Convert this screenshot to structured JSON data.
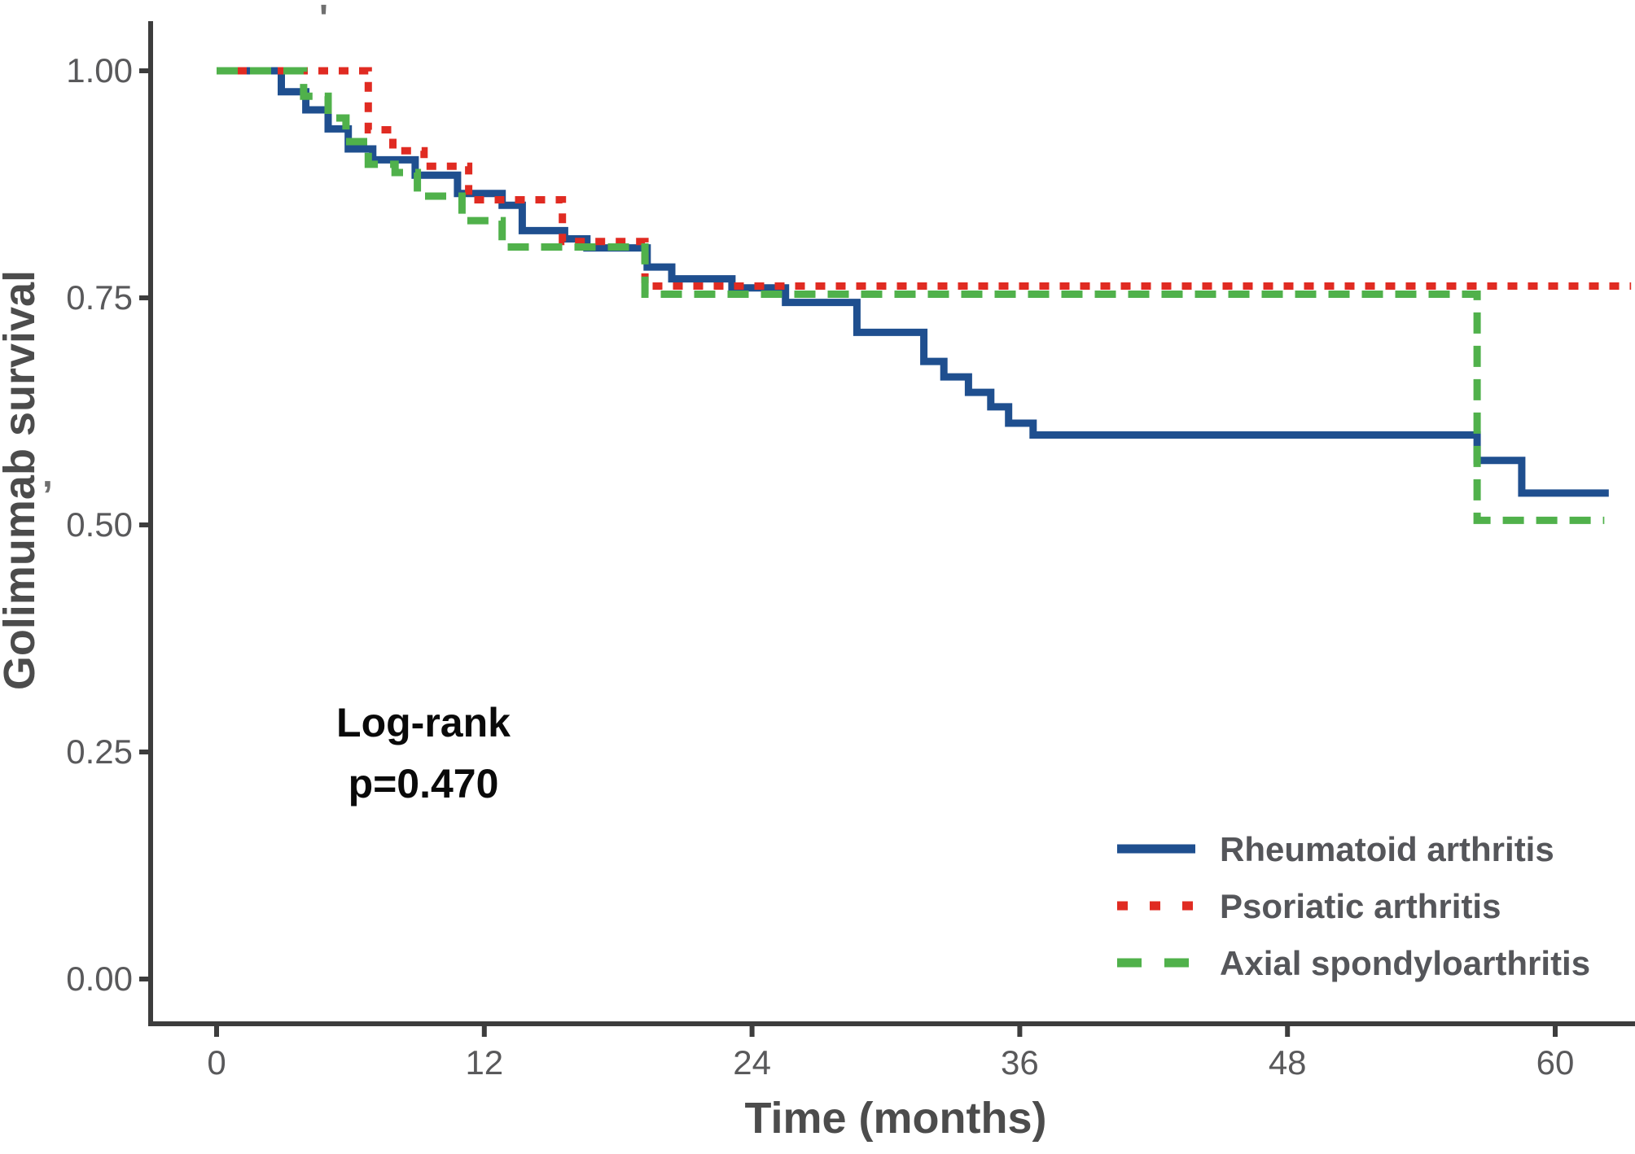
{
  "page": {
    "background": "#ffffff"
  },
  "annotation": {
    "line1": "Log-rank",
    "line2": "p=0.470"
  },
  "artifacts": {
    "top_mark": "'",
    "left_mark": ","
  },
  "chart_data": {
    "type": "line",
    "subtype": "kaplan_meier_step_curves",
    "title": "",
    "xlabel": "Time (months)",
    "ylabel": "Golimumab survival",
    "x_ticks": [
      0,
      12,
      24,
      36,
      48,
      60
    ],
    "y_ticks": [
      {
        "value": 1.0,
        "label": "1.00"
      },
      {
        "value": 0.75,
        "label": "0.75"
      },
      {
        "value": 0.5,
        "label": "0.50"
      },
      {
        "value": 0.25,
        "label": "0.25"
      },
      {
        "value": 0.0,
        "label": "0.00"
      }
    ],
    "xlim": [
      -3,
      64
    ],
    "ylim": [
      0,
      1.02
    ],
    "grid": false,
    "legend_position": "inside-bottom-right",
    "annotation": "Log-rank p=0.470",
    "series": [
      {
        "name": "Rheumatoid arthritis",
        "color": "#1f4f8f",
        "line_style": "solid",
        "end_month": 62.4,
        "points": [
          [
            0,
            1.0
          ],
          [
            2.9,
            0.977
          ],
          [
            4.0,
            0.957
          ],
          [
            5.0,
            0.936
          ],
          [
            5.9,
            0.914
          ],
          [
            7.0,
            0.902
          ],
          [
            8.9,
            0.885
          ],
          [
            10.8,
            0.865
          ],
          [
            12.8,
            0.852
          ],
          [
            13.7,
            0.824
          ],
          [
            15.6,
            0.815
          ],
          [
            16.6,
            0.805
          ],
          [
            19.3,
            0.784
          ],
          [
            20.4,
            0.771
          ],
          [
            23.1,
            0.761
          ],
          [
            25.5,
            0.745
          ],
          [
            28.7,
            0.712
          ],
          [
            31.7,
            0.68
          ],
          [
            32.6,
            0.663
          ],
          [
            33.7,
            0.646
          ],
          [
            34.7,
            0.63
          ],
          [
            35.5,
            0.612
          ],
          [
            36.6,
            0.599
          ],
          [
            56.5,
            0.571
          ],
          [
            58.5,
            0.535
          ]
        ]
      },
      {
        "name": "Psoriatic arthritis",
        "color": "#e02b22",
        "line_style": "dotted",
        "end_month": 63.4,
        "points": [
          [
            0,
            1.0
          ],
          [
            6.8,
            0.935
          ],
          [
            7.9,
            0.912
          ],
          [
            9.3,
            0.895
          ],
          [
            11.3,
            0.858
          ],
          [
            15.5,
            0.812
          ],
          [
            19.2,
            0.763
          ]
        ]
      },
      {
        "name": "Axial spondyloarthritis",
        "color": "#50b14b",
        "line_style": "dashed",
        "end_month": 62.2,
        "points": [
          [
            0,
            1.0
          ],
          [
            3.9,
            0.972
          ],
          [
            5.0,
            0.948
          ],
          [
            5.8,
            0.922
          ],
          [
            6.8,
            0.897
          ],
          [
            8.0,
            0.888
          ],
          [
            9.0,
            0.862
          ],
          [
            11.0,
            0.835
          ],
          [
            12.8,
            0.806
          ],
          [
            19.2,
            0.754
          ],
          [
            56.5,
            0.505
          ]
        ]
      }
    ]
  }
}
